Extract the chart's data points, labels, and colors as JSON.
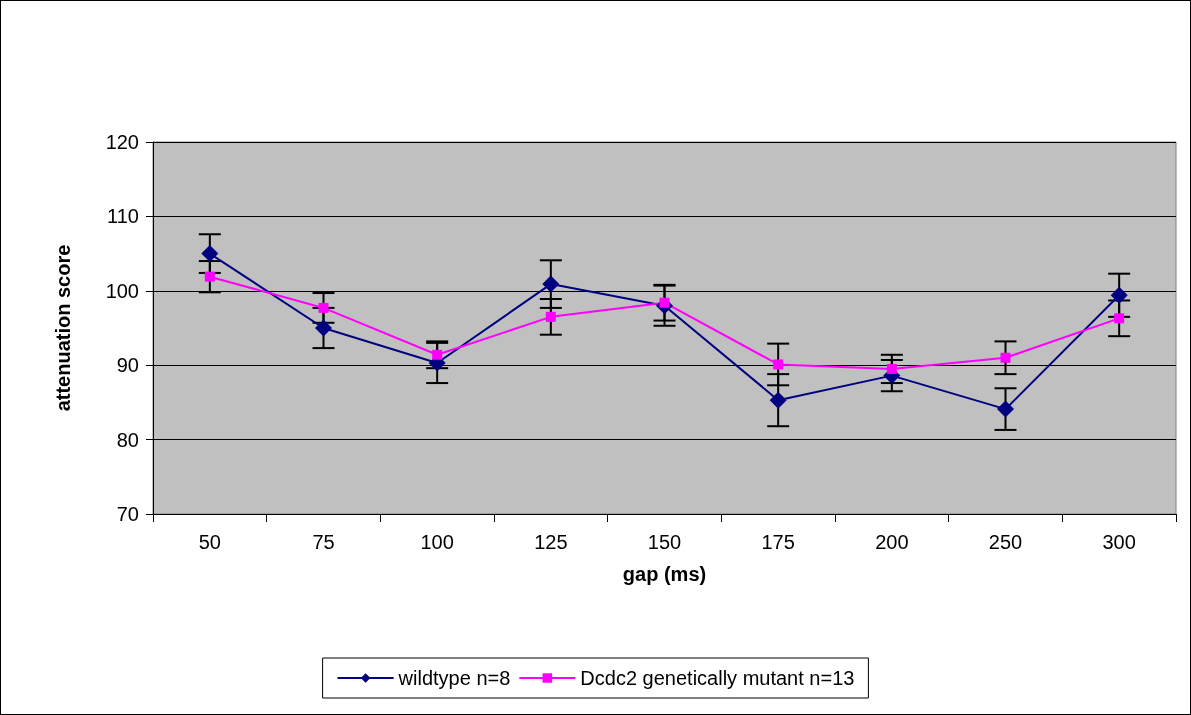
{
  "chart_data": {
    "type": "line",
    "xlabel": "gap (ms)",
    "ylabel": "attenuation score",
    "categories": [
      "50",
      "75",
      "100",
      "125",
      "150",
      "175",
      "200",
      "250",
      "300"
    ],
    "series": [
      {
        "name": "wildtype n=8",
        "color": "#000080",
        "marker": "diamond",
        "values": [
          105.0,
          95.0,
          90.3,
          100.9,
          98.0,
          85.3,
          88.6,
          84.1,
          99.4
        ],
        "errors": [
          2.6,
          2.7,
          2.7,
          3.2,
          2.7,
          3.5,
          2.1,
          2.8,
          2.9
        ]
      },
      {
        "name": "Dcdc2 genetically mutant n=13",
        "color": "#ff00ff",
        "marker": "square",
        "values": [
          101.9,
          97.7,
          91.4,
          96.5,
          98.4,
          90.1,
          89.5,
          91.0,
          96.3
        ],
        "errors": [
          2.1,
          2.0,
          1.8,
          2.4,
          2.4,
          2.8,
          1.9,
          2.2,
          2.4
        ]
      }
    ],
    "ylim": [
      70,
      120
    ],
    "yticks": [
      70,
      80,
      90,
      100,
      110,
      120
    ],
    "grid": "y",
    "legend": "bottom"
  }
}
